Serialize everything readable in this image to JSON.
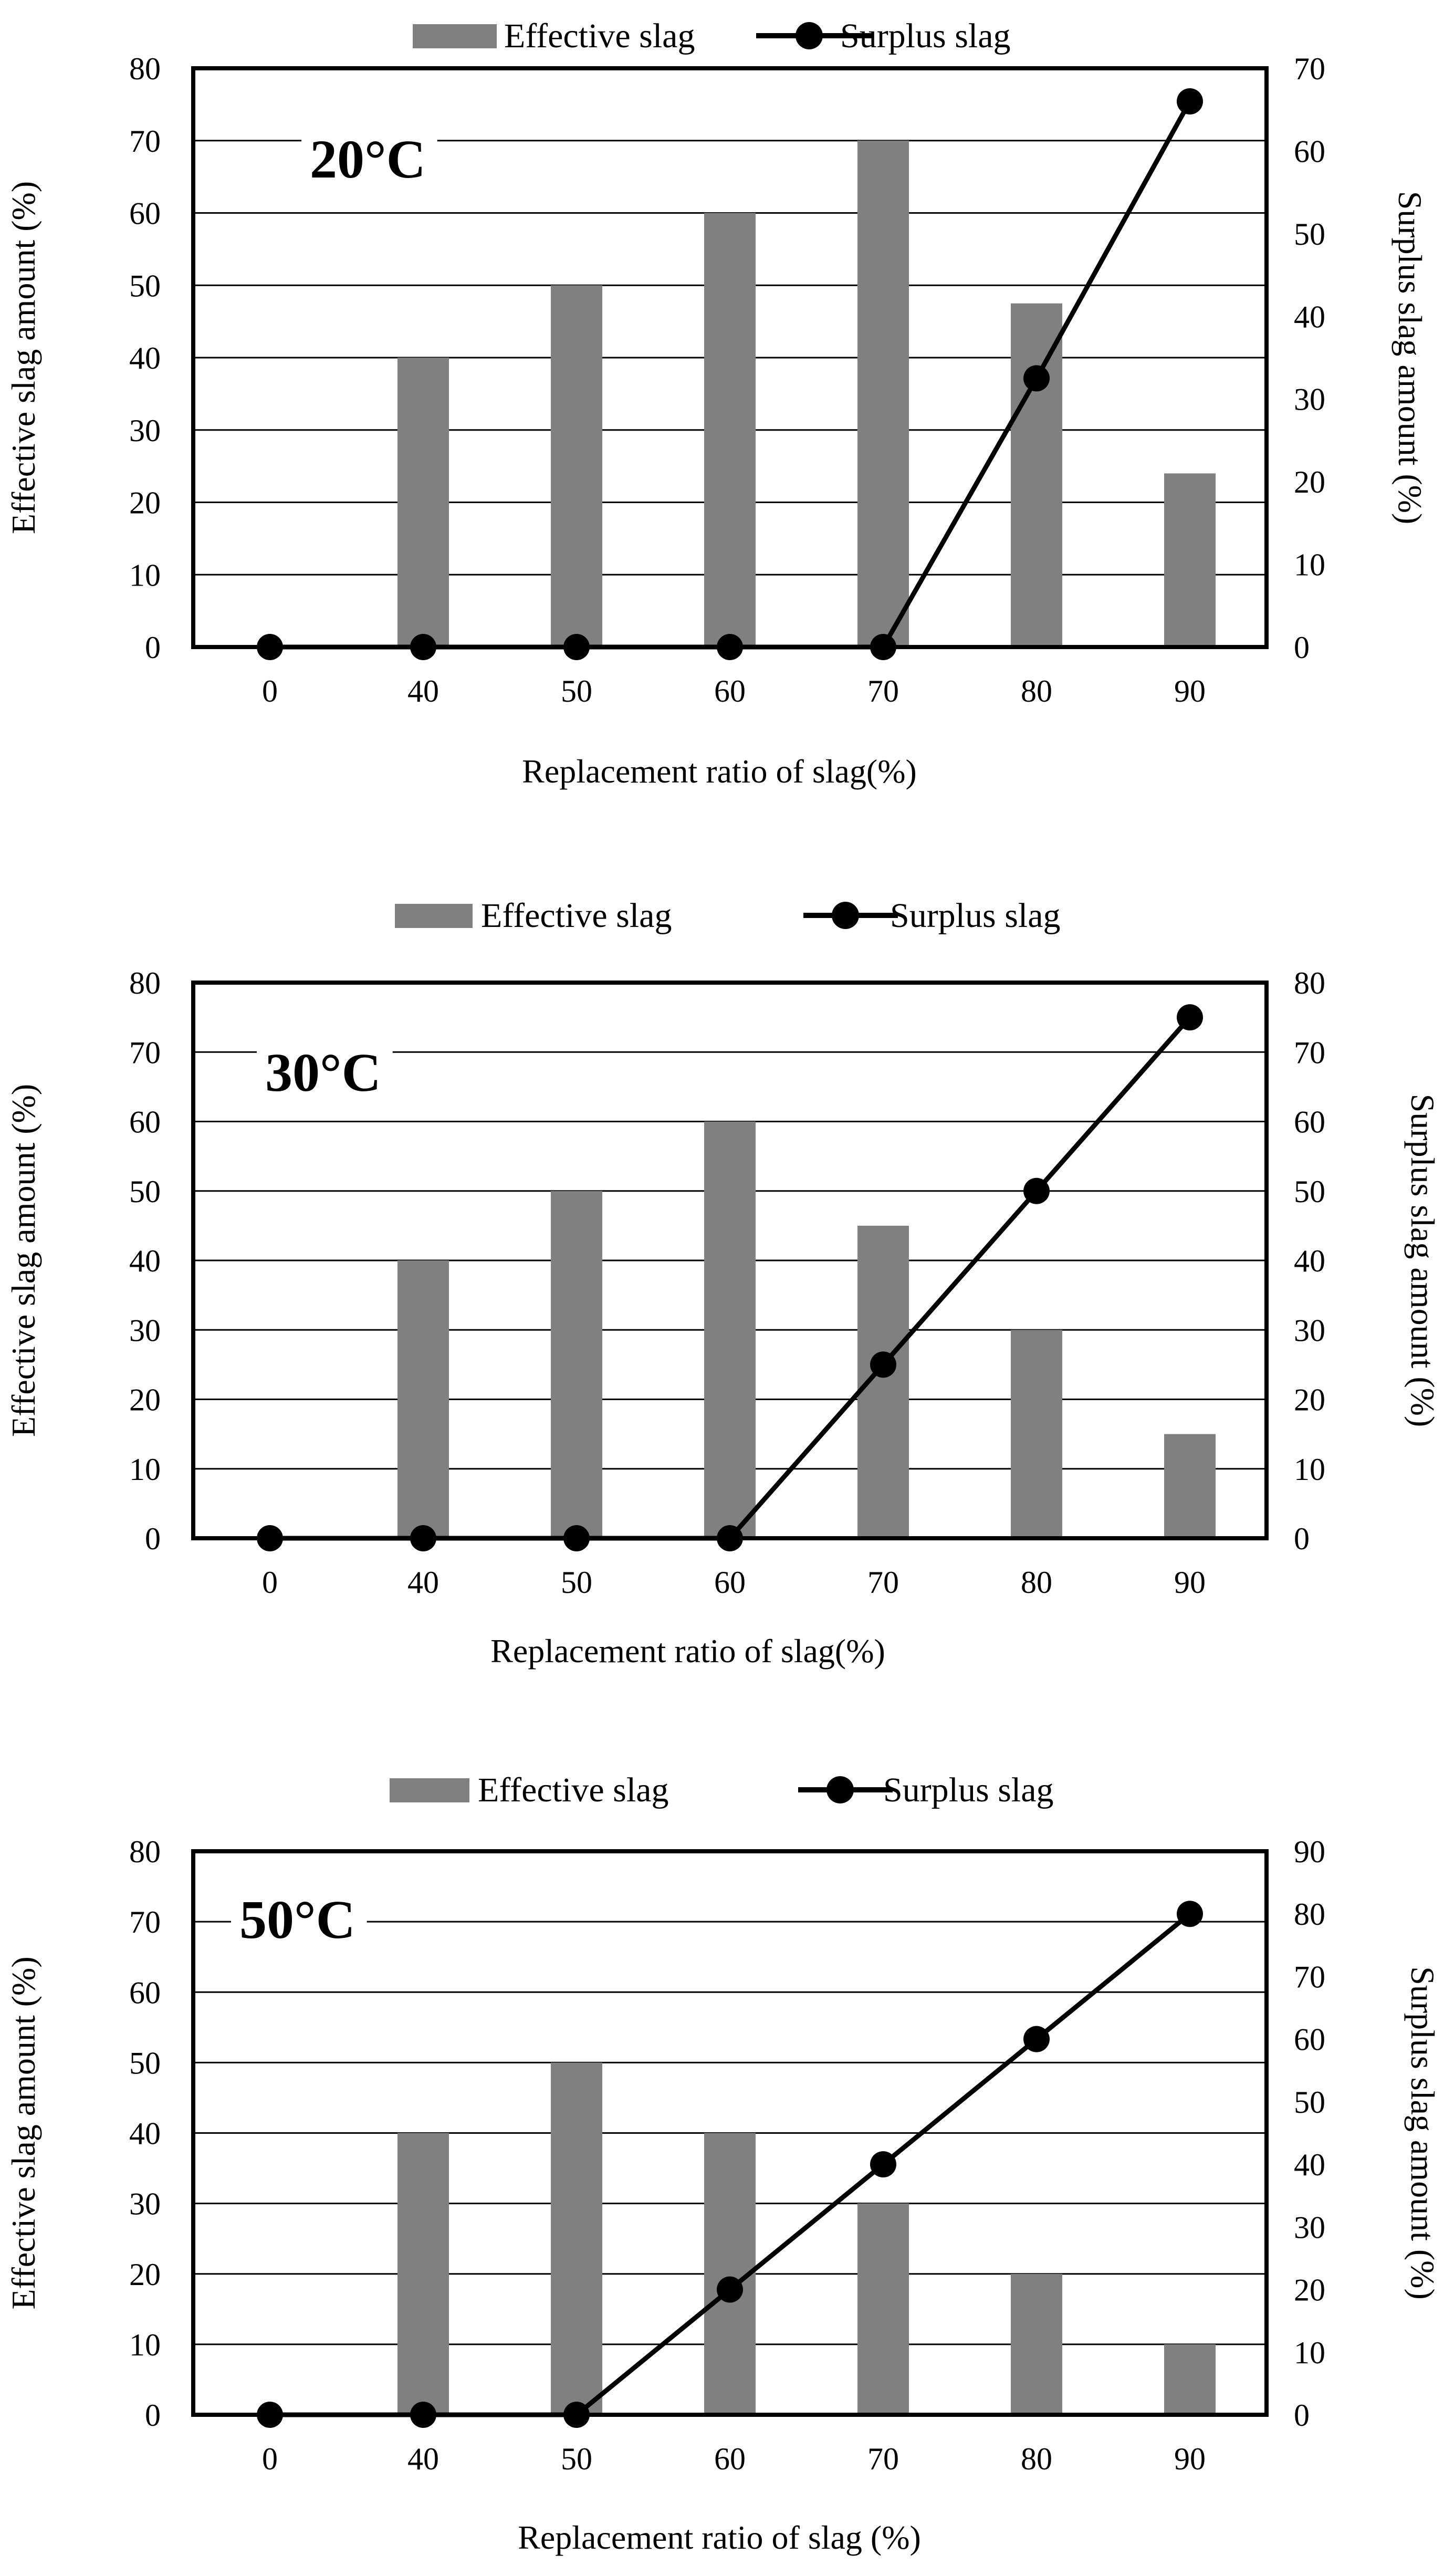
{
  "chart_data": [
    {
      "type": "bar+line",
      "panel_label": "20°C",
      "categories": [
        "0",
        "40",
        "50",
        "60",
        "70",
        "80",
        "90"
      ],
      "series": [
        {
          "name": "Effective slag",
          "type": "bar",
          "axis": "left",
          "values": [
            0,
            40,
            50,
            60,
            70,
            47.5,
            24
          ]
        },
        {
          "name": "Surplus slag",
          "type": "line",
          "axis": "right",
          "values": [
            0,
            0,
            0,
            0,
            0,
            32.5,
            66
          ]
        }
      ],
      "xlabel": "Replacement ratio of slag(%)",
      "ylabel_left": "Effective slag amount (%)",
      "ylabel_right": "Surplus  slag amount (%)",
      "ylim_left": [
        0,
        80
      ],
      "ylim_right": [
        0,
        70
      ],
      "yticks_left": [
        "0",
        "10",
        "20",
        "30",
        "40",
        "50",
        "60",
        "70",
        "80"
      ],
      "yticks_right": [
        "0",
        "10",
        "20",
        "30",
        "40",
        "50",
        "60",
        "70"
      ],
      "grid": true,
      "legend": "top-center",
      "colors": {
        "bar": "#808080",
        "line": "#000000"
      }
    },
    {
      "type": "bar+line",
      "panel_label": "30°C",
      "categories": [
        "0",
        "40",
        "50",
        "60",
        "70",
        "80",
        "90"
      ],
      "series": [
        {
          "name": "Effective slag",
          "type": "bar",
          "axis": "left",
          "values": [
            0,
            40,
            50,
            60,
            45,
            30,
            15
          ]
        },
        {
          "name": "Surplus slag",
          "type": "line",
          "axis": "right",
          "values": [
            0,
            0,
            0,
            0,
            25,
            50,
            75
          ]
        }
      ],
      "xlabel": "Replacement ratio of slag(%)",
      "ylabel_left": "Effective slag amount (%)",
      "ylabel_right": "Surplus  slag amount (%)",
      "ylim_left": [
        0,
        80
      ],
      "ylim_right": [
        0,
        80
      ],
      "yticks_left": [
        "0",
        "10",
        "20",
        "30",
        "40",
        "50",
        "60",
        "70",
        "80"
      ],
      "yticks_right": [
        "0",
        "10",
        "20",
        "30",
        "40",
        "50",
        "60",
        "70",
        "80"
      ],
      "grid": true,
      "legend": "top-center",
      "colors": {
        "bar": "#808080",
        "line": "#000000"
      }
    },
    {
      "type": "bar+line",
      "panel_label": "50°C",
      "categories": [
        "0",
        "40",
        "50",
        "60",
        "70",
        "80",
        "90"
      ],
      "series": [
        {
          "name": "Effective slag",
          "type": "bar",
          "axis": "left",
          "values": [
            0,
            40,
            50,
            40,
            30,
            20,
            10
          ]
        },
        {
          "name": "Surplus slag",
          "type": "line",
          "axis": "right",
          "values": [
            0,
            0,
            0,
            20,
            40,
            60,
            80
          ]
        }
      ],
      "xlabel": "Replacement ratio of slag (%)",
      "ylabel_left": "Effective slag amount (%)",
      "ylabel_right": "Surplus slag amount (%)",
      "ylim_left": [
        0,
        80
      ],
      "ylim_right": [
        0,
        90
      ],
      "yticks_left": [
        "0",
        "10",
        "20",
        "30",
        "40",
        "50",
        "60",
        "70",
        "80"
      ],
      "yticks_right": [
        "0",
        "10",
        "20",
        "30",
        "40",
        "50",
        "60",
        "70",
        "80",
        "90"
      ],
      "grid": true,
      "legend": "top-center",
      "colors": {
        "bar": "#808080",
        "line": "#000000"
      }
    }
  ]
}
